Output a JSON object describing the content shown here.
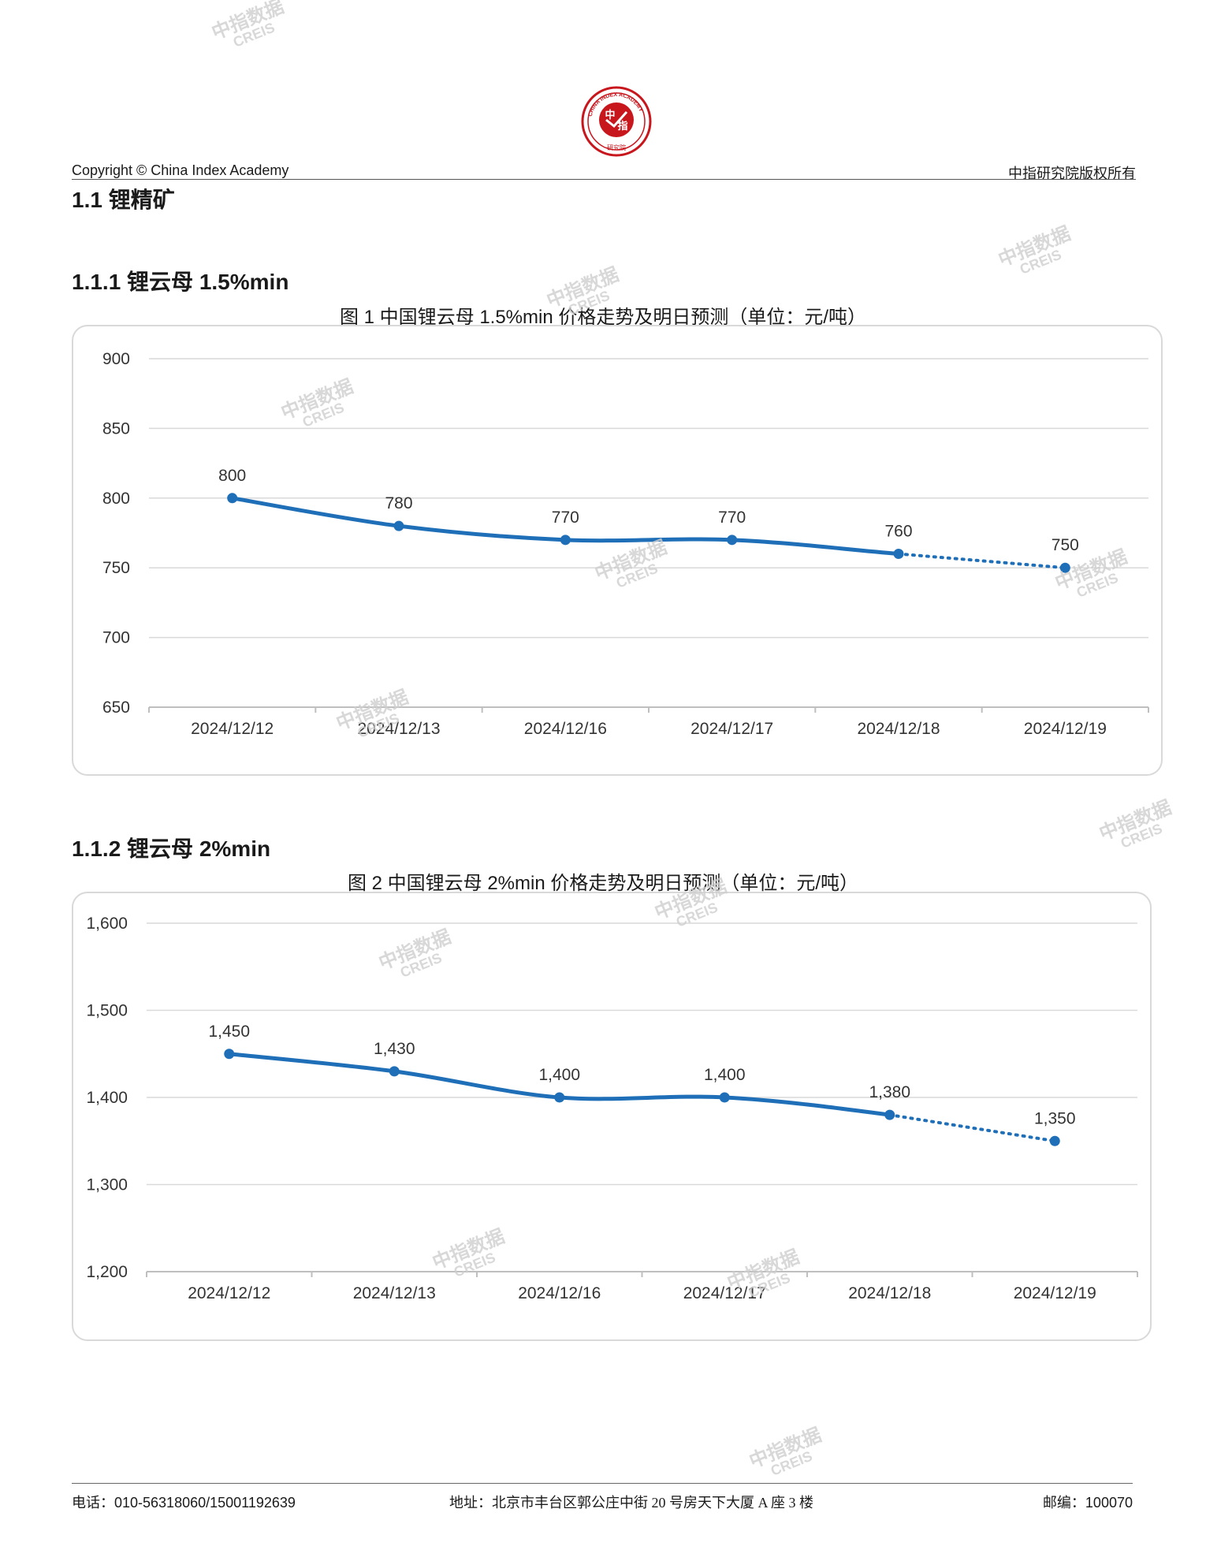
{
  "header": {
    "copyright": "Copyright © China Index Academy",
    "rights": "中指研究院版权所有",
    "logo": {
      "center_text": "中指",
      "ring_text": "CHINA INDEX ACADEMY",
      "bottom_text": "研究院"
    }
  },
  "section": {
    "title": "1.1 锂精矿"
  },
  "subsections": [
    {
      "title": "1.1.1 锂云母 1.5%min"
    },
    {
      "title": "1.1.2 锂云母 2%min"
    }
  ],
  "watermark": {
    "cn": "中指数据",
    "en": "CREIS"
  },
  "colors": {
    "series": "#1f6fb8",
    "grid": "#d9d9d9",
    "axis": "#bfbfbf"
  },
  "chart_data": [
    {
      "type": "line",
      "title": "图 1 中国锂云母 1.5%min 价格走势及明日预测（单位：元/吨）",
      "categories": [
        "2024/12/12",
        "2024/12/13",
        "2024/12/16",
        "2024/12/17",
        "2024/12/18",
        "2024/12/19"
      ],
      "series": [
        {
          "values": [
            800,
            780,
            770,
            770,
            760,
            750
          ],
          "forecast_from_index": 4
        }
      ],
      "data_labels": [
        "800",
        "780",
        "770",
        "770",
        "760",
        "750"
      ],
      "ylim": [
        650,
        900
      ],
      "yticks": [
        650,
        700,
        750,
        800,
        850,
        900
      ],
      "ytick_labels": [
        "650",
        "700",
        "750",
        "800",
        "850",
        "900"
      ],
      "grid": true,
      "legend": "none"
    },
    {
      "type": "line",
      "title": "图 2 中国锂云母 2%min 价格走势及明日预测（单位：元/吨）",
      "categories": [
        "2024/12/12",
        "2024/12/13",
        "2024/12/16",
        "2024/12/17",
        "2024/12/18",
        "2024/12/19"
      ],
      "series": [
        {
          "values": [
            1450,
            1430,
            1400,
            1400,
            1380,
            1350
          ],
          "forecast_from_index": 4
        }
      ],
      "data_labels": [
        "1,450",
        "1,430",
        "1,400",
        "1,400",
        "1,380",
        "1,350"
      ],
      "ylim": [
        1200,
        1600
      ],
      "yticks": [
        1200,
        1300,
        1400,
        1500,
        1600
      ],
      "ytick_labels": [
        "1,200",
        "1,300",
        "1,400",
        "1,500",
        "1,600"
      ],
      "grid": true,
      "legend": "none"
    }
  ],
  "footer": {
    "phone": "电话：010-56318060/15001192639",
    "address": "地址：北京市丰台区郭公庄中街 20 号房天下大厦 A 座 3 楼",
    "postcode": "邮编：100070"
  }
}
